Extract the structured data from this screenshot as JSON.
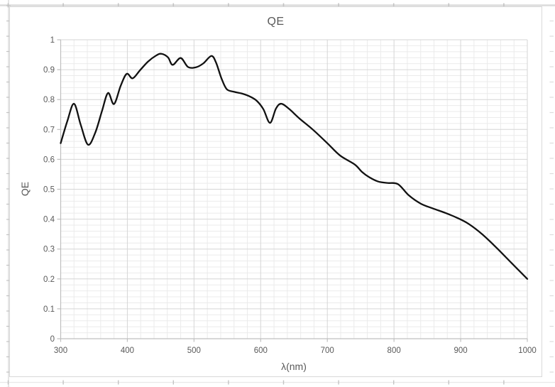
{
  "app": {
    "kind": "spreadsheet embedded chart"
  },
  "chart": {
    "title": "QE",
    "x_axis": {
      "title": "λ(nm)",
      "tick_labels": [
        "300",
        "400",
        "500",
        "600",
        "700",
        "800",
        "900",
        "1000"
      ]
    },
    "y_axis": {
      "title": "QE",
      "tick_labels": [
        "0",
        "0.1",
        "0.2",
        "0.3",
        "0.4",
        "0.5",
        "0.6",
        "0.7",
        "0.8",
        "0.9",
        "1"
      ]
    },
    "colors": {
      "series_line": "#111111",
      "major_grid": "#d6d6d6",
      "minor_grid": "#ebebeb",
      "axis_line": "#bfbfbf",
      "tick_mark": "#bfbfbf",
      "label_text": "#595959",
      "chart_border": "#d9d9d9",
      "worksheet_grid": "#dcdcdc",
      "worksheet_tick": "#c3c3c3",
      "background": "#ffffff"
    }
  },
  "chart_data": {
    "type": "line",
    "title": "QE",
    "xlabel": "λ(nm)",
    "ylabel": "QE",
    "xlim": [
      300,
      1000
    ],
    "ylim": [
      0,
      1
    ],
    "x_major_unit": 100,
    "x_minor_unit": 20,
    "y_major_unit": 0.1,
    "y_minor_unit": 0.02,
    "grid": "major and minor gridlines on both axes",
    "legend": "none",
    "line_style": "smooth black curve, ~2px",
    "series": [
      {
        "name": "QE",
        "points": [
          [
            300,
            0.654
          ],
          [
            310,
            0.728
          ],
          [
            320,
            0.786
          ],
          [
            330,
            0.716
          ],
          [
            341,
            0.649
          ],
          [
            352,
            0.69
          ],
          [
            362,
            0.762
          ],
          [
            371,
            0.822
          ],
          [
            380,
            0.785
          ],
          [
            390,
            0.846
          ],
          [
            399,
            0.886
          ],
          [
            408,
            0.871
          ],
          [
            419,
            0.898
          ],
          [
            431,
            0.927
          ],
          [
            443,
            0.947
          ],
          [
            451,
            0.953
          ],
          [
            461,
            0.941
          ],
          [
            468,
            0.916
          ],
          [
            480,
            0.939
          ],
          [
            491,
            0.909
          ],
          [
            503,
            0.908
          ],
          [
            514,
            0.921
          ],
          [
            526,
            0.946
          ],
          [
            533,
            0.924
          ],
          [
            541,
            0.872
          ],
          [
            549,
            0.835
          ],
          [
            560,
            0.826
          ],
          [
            572,
            0.82
          ],
          [
            584,
            0.81
          ],
          [
            594,
            0.796
          ],
          [
            604,
            0.768
          ],
          [
            614,
            0.722
          ],
          [
            623,
            0.77
          ],
          [
            631,
            0.786
          ],
          [
            643,
            0.768
          ],
          [
            658,
            0.737
          ],
          [
            678,
            0.7
          ],
          [
            700,
            0.654
          ],
          [
            719,
            0.613
          ],
          [
            741,
            0.583
          ],
          [
            752,
            0.558
          ],
          [
            763,
            0.54
          ],
          [
            776,
            0.526
          ],
          [
            790,
            0.521
          ],
          [
            806,
            0.517
          ],
          [
            822,
            0.48
          ],
          [
            840,
            0.452
          ],
          [
            858,
            0.436
          ],
          [
            878,
            0.42
          ],
          [
            896,
            0.403
          ],
          [
            912,
            0.384
          ],
          [
            932,
            0.35
          ],
          [
            953,
            0.306
          ],
          [
            976,
            0.254
          ],
          [
            1000,
            0.2
          ]
        ]
      }
    ]
  }
}
